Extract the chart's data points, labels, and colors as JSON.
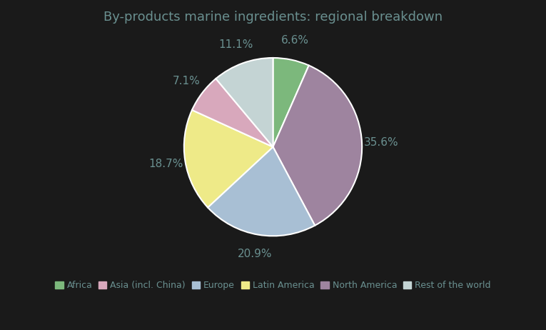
{
  "title": "By-products marine ingredients: regional breakdown",
  "slices": [
    {
      "label": "Africa",
      "value": 6.6,
      "color": "#7cb87c"
    },
    {
      "label": "North America",
      "value": 35.6,
      "color": "#9e849f"
    },
    {
      "label": "Europe",
      "value": 20.9,
      "color": "#a8bfd4"
    },
    {
      "label": "Latin America",
      "value": 18.7,
      "color": "#eeea88"
    },
    {
      "label": "Asia (incl. China)",
      "value": 7.1,
      "color": "#d8a8bc"
    },
    {
      "label": "Rest of the world",
      "value": 11.1,
      "color": "#c4d4d4"
    }
  ],
  "legend_order": [
    "Africa",
    "Asia (incl. China)",
    "Europe",
    "Latin America",
    "North America",
    "Rest of the world"
  ],
  "title_fontsize": 13,
  "label_fontsize": 11,
  "legend_fontsize": 9,
  "background_color": "#1a1a1a",
  "text_color": "#6a9090",
  "startangle": 90
}
